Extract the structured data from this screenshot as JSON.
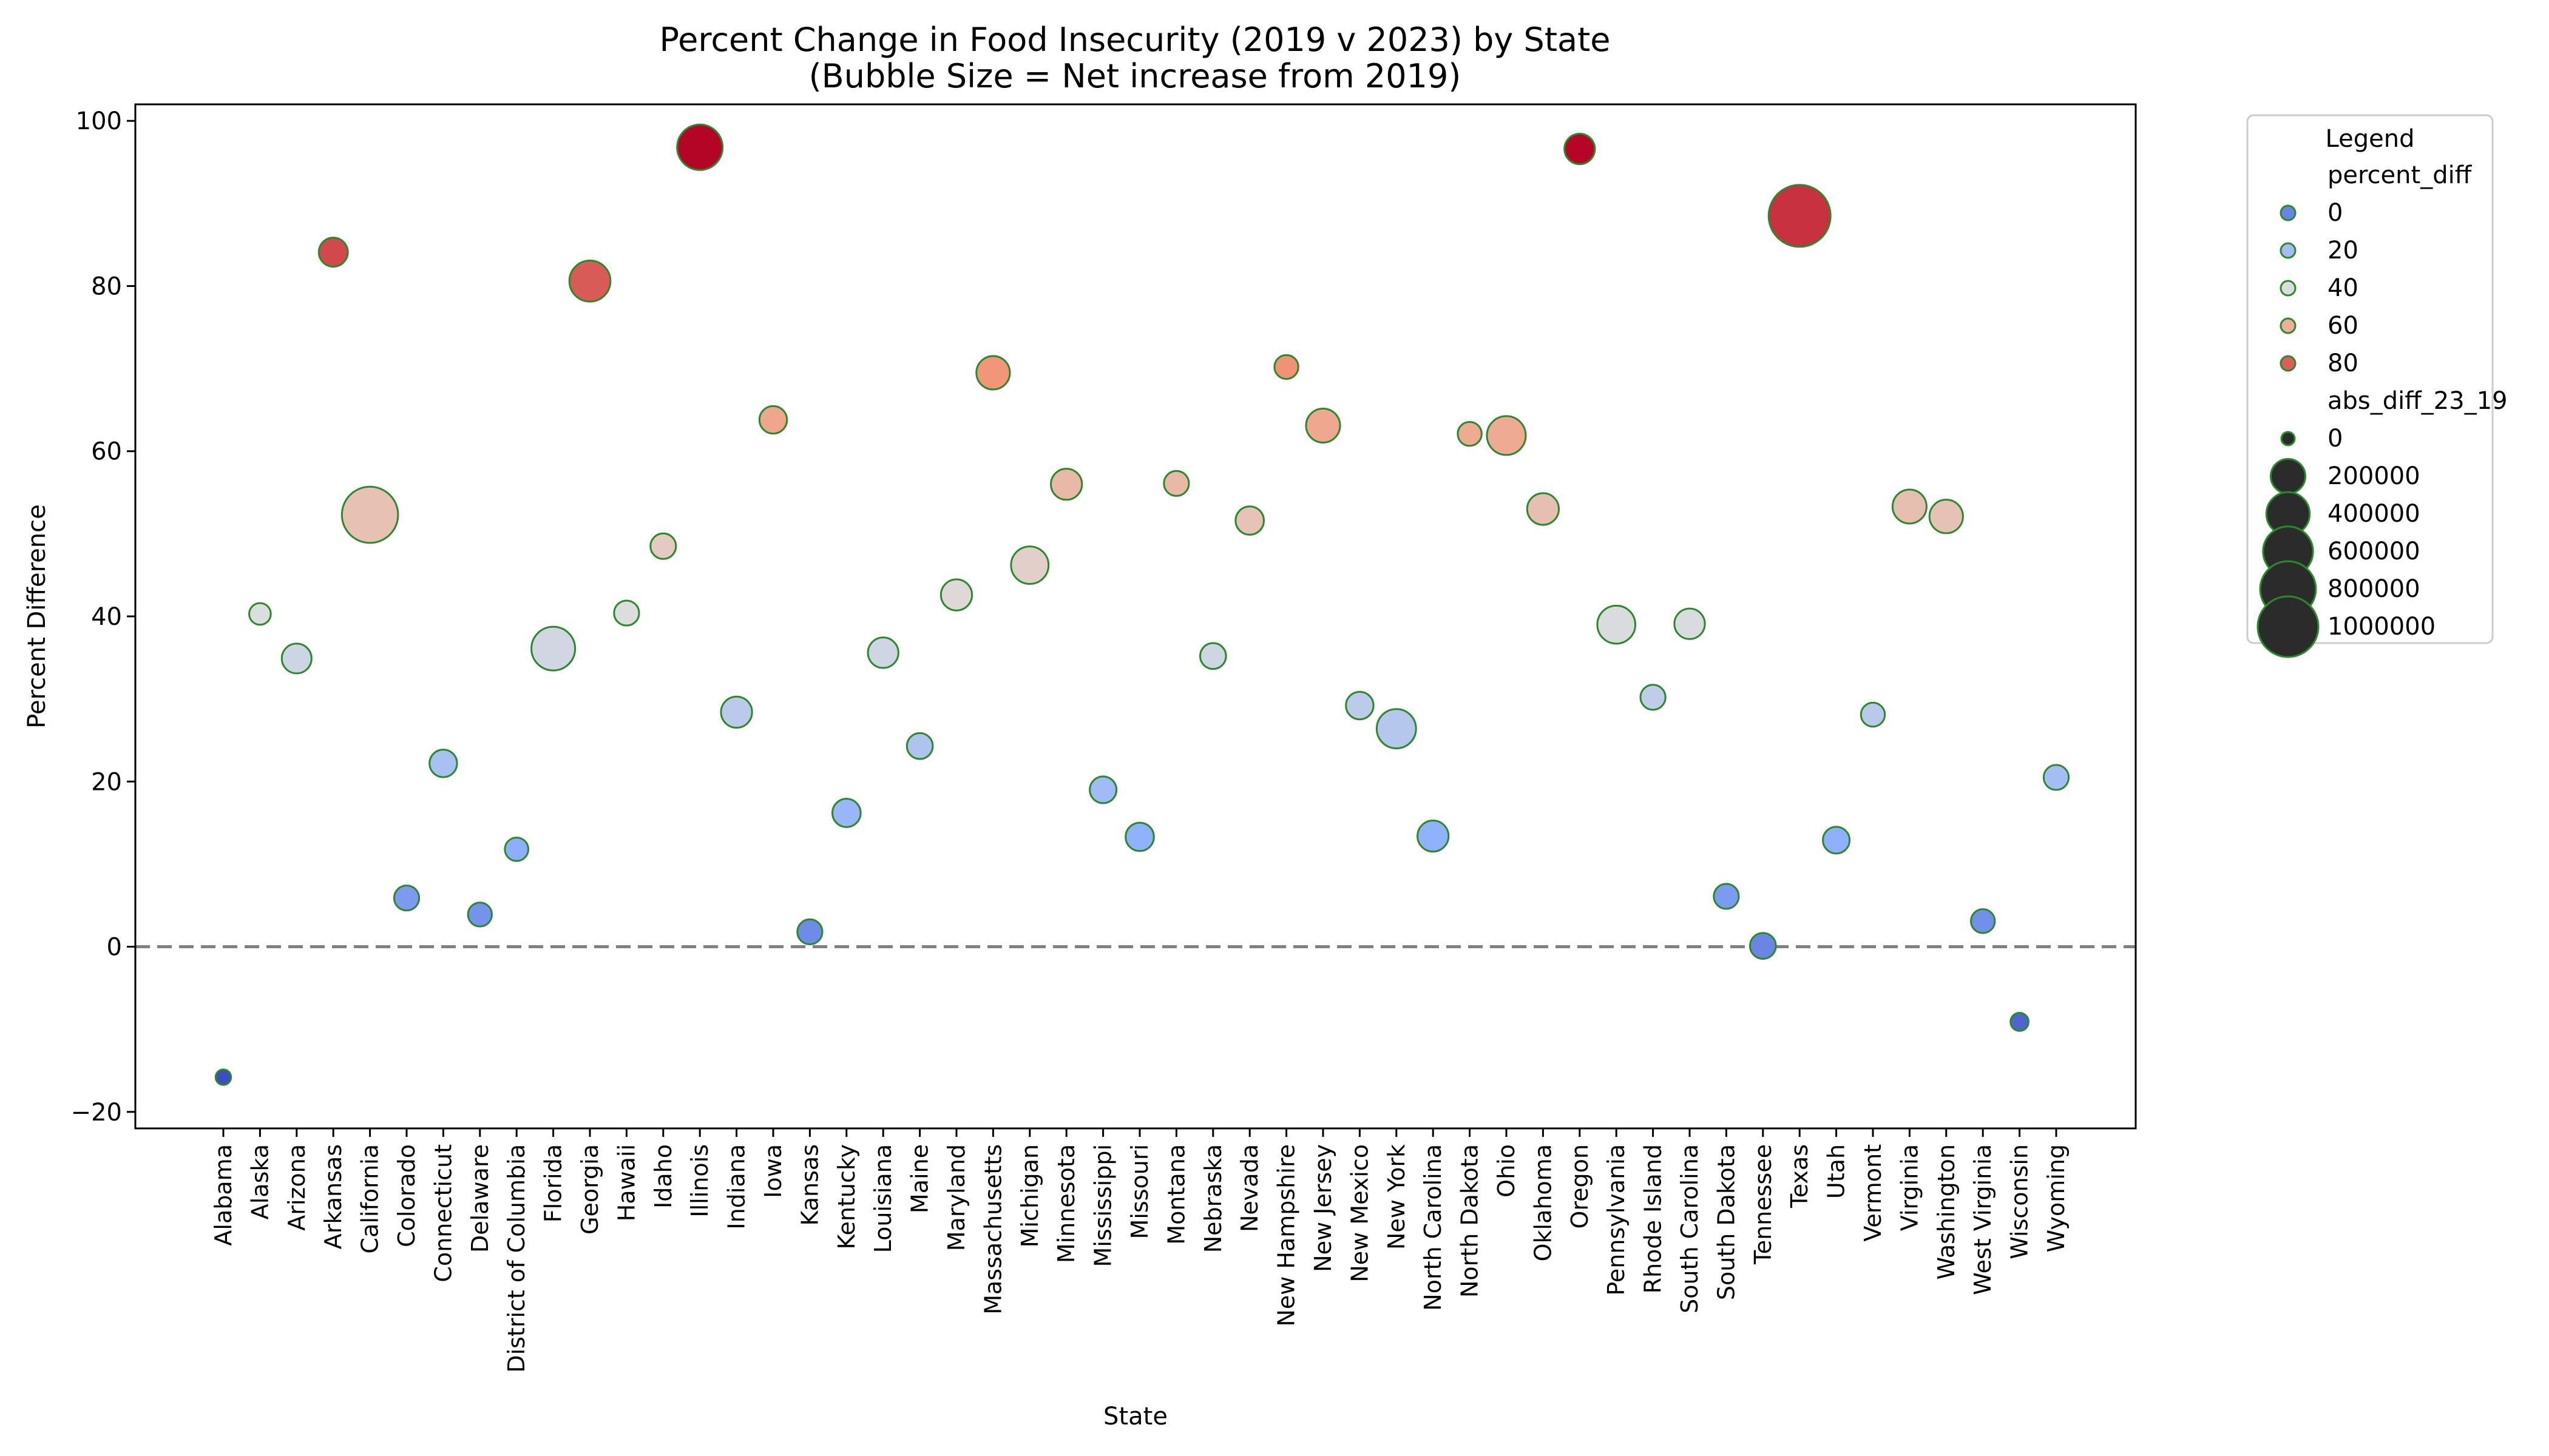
{
  "chart_data": {
    "type": "scatter",
    "title_line1": "Percent Change in Food Insecurity (2019 v 2023) by State",
    "title_line2": "(Bubble Size = Net increase from 2019)",
    "xlabel": "State",
    "ylabel": "Percent Difference",
    "ylim": [
      -22,
      102
    ],
    "yticks": [
      -20,
      0,
      20,
      40,
      60,
      80,
      100
    ],
    "ytick_labels": [
      "−20",
      "0",
      "20",
      "40",
      "60",
      "80",
      "100"
    ],
    "reference_line": 0,
    "grid": false,
    "legend_placement": "outside right, top",
    "colors": {
      "marker_edge": "#2a8a2a",
      "reference_line": "#808080"
    },
    "categories": [
      "Alabama",
      "Alaska",
      "Arizona",
      "Arkansas",
      "California",
      "Colorado",
      "Connecticut",
      "Delaware",
      "District of Columbia",
      "Florida",
      "Georgia",
      "Hawaii",
      "Idaho",
      "Illinois",
      "Indiana",
      "Iowa",
      "Kansas",
      "Kentucky",
      "Louisiana",
      "Maine",
      "Maryland",
      "Massachusetts",
      "Michigan",
      "Minnesota",
      "Mississippi",
      "Missouri",
      "Montana",
      "Nebraska",
      "Nevada",
      "New Hampshire",
      "New Jersey",
      "New Mexico",
      "New York",
      "North Carolina",
      "North Dakota",
      "Ohio",
      "Oklahoma",
      "Oregon",
      "Pennsylvania",
      "Rhode Island",
      "South Carolina",
      "South Dakota",
      "Tennessee",
      "Texas",
      "Utah",
      "Vermont",
      "Virginia",
      "Washington",
      "West Virginia",
      "Wisconsin",
      "Wyoming"
    ],
    "percent_diff": [
      -15.8,
      40.3,
      34.9,
      84.1,
      52.3,
      5.9,
      22.2,
      3.9,
      11.8,
      36.1,
      80.6,
      40.4,
      48.5,
      96.8,
      28.4,
      63.8,
      1.8,
      16.2,
      35.6,
      24.3,
      42.6,
      69.5,
      46.2,
      56.0,
      19.0,
      13.3,
      56.1,
      35.2,
      51.6,
      70.2,
      63.1,
      29.2,
      26.4,
      13.4,
      62.1,
      61.9,
      53.0,
      96.6,
      39.0,
      30.2,
      39.1,
      6.1,
      0.1,
      88.5,
      12.9,
      28.1,
      53.3,
      52.1,
      3.1,
      -9.1,
      20.5
    ],
    "abs_diff_23_19": [
      2000,
      30000,
      120000,
      110000,
      820000,
      60000,
      90000,
      50000,
      45000,
      410000,
      340000,
      60000,
      65000,
      460000,
      140000,
      90000,
      60000,
      100000,
      130000,
      70000,
      140000,
      180000,
      260000,
      140000,
      80000,
      100000,
      60000,
      70000,
      100000,
      50000,
      190000,
      90000,
      300000,
      140000,
      50000,
      290000,
      150000,
      130000,
      270000,
      60000,
      130000,
      60000,
      70000,
      1050000,
      80000,
      50000,
      190000,
      180000,
      50000,
      10000,
      60000
    ],
    "legend": {
      "title": "Legend",
      "hue_title": "percent_diff",
      "hue_entries": [
        {
          "label": "0",
          "value": 0
        },
        {
          "label": "20",
          "value": 20
        },
        {
          "label": "40",
          "value": 40
        },
        {
          "label": "60",
          "value": 60
        },
        {
          "label": "80",
          "value": 80
        }
      ],
      "size_title": "abs_diff_23_19",
      "size_entries": [
        {
          "label": "0",
          "value": 0
        },
        {
          "label": "200000",
          "value": 200000
        },
        {
          "label": "400000",
          "value": 400000
        },
        {
          "label": "600000",
          "value": 600000
        },
        {
          "label": "800000",
          "value": 800000
        },
        {
          "label": "1000000",
          "value": 1000000
        }
      ]
    }
  }
}
